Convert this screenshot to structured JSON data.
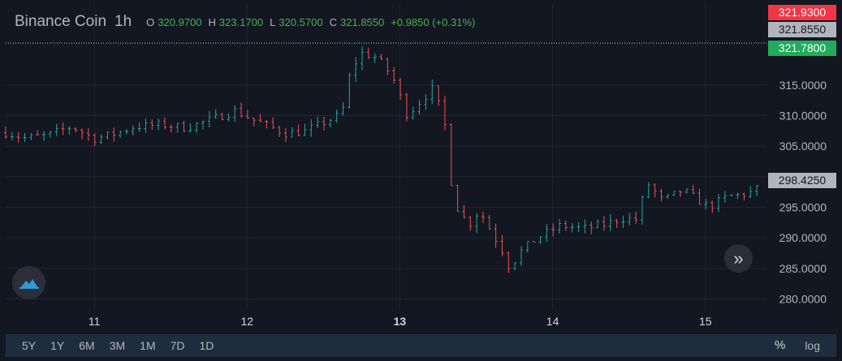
{
  "header": {
    "symbol": "Binance Coin",
    "interval": "1h",
    "open_label": "O",
    "open": "320.9700",
    "high_label": "H",
    "high": "323.1700",
    "low_label": "L",
    "low": "320.5700",
    "close_label": "C",
    "close": "321.8550",
    "change": "+0.9850 (+0.31%)"
  },
  "price_tags": {
    "high_tag": "321.9300",
    "current_tag": "321.8550",
    "low_tag": "321.7800",
    "crosshair_tag": "298.4250"
  },
  "toolbar": {
    "ranges": [
      "5Y",
      "1Y",
      "6M",
      "3M",
      "1M",
      "7D",
      "1D"
    ],
    "percent_label": "%",
    "log_label": "log"
  },
  "colors": {
    "background": "#131722",
    "grid": "#1f2433",
    "up": "#26a69a",
    "down": "#ef5350",
    "axis_text": "#b2b5be",
    "high_tag_bg": "#f23645",
    "current_tag_bg": "#b2b5be",
    "low_tag_bg": "#22ab5c",
    "toolbar_bg": "#1e2d3e"
  },
  "icons": {
    "logo": "tradingview-cloud-icon",
    "scroll": "double-chevron-right-icon"
  },
  "chart_data": {
    "type": "ohlc",
    "x_tick_labels": [
      "11",
      "12",
      "13",
      "14",
      "15"
    ],
    "x_ticks": [
      11,
      12,
      13,
      14,
      15
    ],
    "x_range": [
      10.42,
      15.4
    ],
    "y_tick_labels": [
      "280.0000",
      "285.0000",
      "290.0000",
      "295.0000",
      "300.0000",
      "305.0000",
      "310.0000",
      "315.0000"
    ],
    "y_ticks": [
      280,
      285,
      290,
      295,
      300,
      305,
      310,
      315
    ],
    "y_range": [
      278.2,
      324.4
    ],
    "grid": true,
    "last_price_line": 321.855,
    "anchors": [
      [
        10.42,
        307.2
      ],
      [
        10.55,
        306.3
      ],
      [
        10.7,
        306.8
      ],
      [
        10.85,
        308.2
      ],
      [
        11.0,
        306.2
      ],
      [
        11.13,
        307.0
      ],
      [
        11.27,
        308.2
      ],
      [
        11.45,
        308.5
      ],
      [
        11.6,
        308.0
      ],
      [
        11.75,
        309.2
      ],
      [
        11.92,
        310.8
      ],
      [
        12.05,
        309.2
      ],
      [
        12.15,
        308.2
      ],
      [
        12.25,
        307.1
      ],
      [
        12.38,
        307.4
      ],
      [
        12.48,
        308.6
      ],
      [
        12.62,
        310.2
      ],
      [
        12.68,
        317.5
      ],
      [
        12.75,
        320.2
      ],
      [
        12.85,
        319.5
      ],
      [
        12.95,
        316.5
      ],
      [
        13.05,
        310.0
      ],
      [
        13.12,
        312.0
      ],
      [
        13.22,
        314.5
      ],
      [
        13.3,
        308.0
      ],
      [
        13.35,
        296.0
      ],
      [
        13.45,
        292.0
      ],
      [
        13.52,
        294.5
      ],
      [
        13.6,
        291.0
      ],
      [
        13.67,
        288.0
      ],
      [
        13.72,
        285.0
      ],
      [
        13.78,
        287.5
      ],
      [
        13.9,
        290.0
      ],
      [
        14.05,
        292.0
      ],
      [
        14.2,
        291.5
      ],
      [
        14.35,
        292.2
      ],
      [
        14.45,
        293.2
      ],
      [
        14.55,
        293.0
      ],
      [
        14.62,
        299.0
      ],
      [
        14.72,
        296.0
      ],
      [
        14.85,
        297.8
      ],
      [
        14.95,
        296.2
      ],
      [
        15.02,
        295.0
      ],
      [
        15.15,
        296.8
      ],
      [
        15.28,
        297.2
      ],
      [
        15.37,
        298.4
      ]
    ]
  }
}
